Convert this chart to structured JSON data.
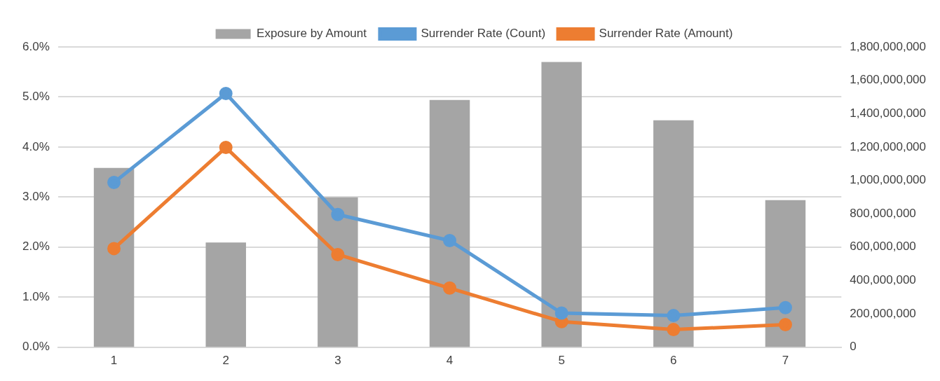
{
  "chart_data": {
    "type": "bar",
    "categories": [
      "1",
      "2",
      "3",
      "4",
      "5",
      "6",
      "7"
    ],
    "series": [
      {
        "name": "Exposure by Amount",
        "axis": "y2",
        "color": "#a5a5a5",
        "values": [
          1075000000,
          627000000,
          898000000,
          1482000000,
          1710000000,
          1360000000,
          881000000
        ]
      },
      {
        "name": "Surrender Rate (Count)",
        "type": "line",
        "color": "#5b9bd5",
        "values": [
          3.29,
          5.07,
          2.65,
          2.13,
          0.68,
          0.63,
          0.79
        ]
      },
      {
        "name": "Surrender Rate (Amount)",
        "type": "line",
        "color": "#ed7d31",
        "values": [
          1.97,
          3.99,
          1.85,
          1.18,
          0.51,
          0.35,
          0.45
        ]
      }
    ],
    "ylim": [
      0,
      6
    ],
    "yticks": [
      {
        "value": 0,
        "label": "0.0%"
      },
      {
        "value": 1,
        "label": "1.0%"
      },
      {
        "value": 2,
        "label": "2.0%"
      },
      {
        "value": 3,
        "label": "3.0%"
      },
      {
        "value": 4,
        "label": "4.0%"
      },
      {
        "value": 5,
        "label": "5.0%"
      },
      {
        "value": 6,
        "label": "6.0%"
      }
    ],
    "y2lim": [
      0,
      1800000000
    ],
    "y2ticks": [
      0,
      {
        "value": 200000000,
        "label": "200,000,000"
      },
      {
        "value": 400000000,
        "label": "400,000,000"
      },
      {
        "value": 600000000,
        "label": "600,000,000"
      },
      {
        "value": 800000000,
        "label": "800,000,000"
      },
      {
        "value": 1000000000,
        "label": "1,000,000,000"
      },
      {
        "value": 1200000000,
        "label": "1,200,000,000"
      },
      {
        "value": 1400000000,
        "label": "1,400,000,000"
      },
      {
        "value": 1600000000,
        "label": "1,600,000,000"
      },
      {
        "value": 1800000000,
        "label": "1,800,000,000"
      }
    ],
    "grid": "y",
    "legend": "top",
    "marker": "circle",
    "line_style": "solid"
  }
}
